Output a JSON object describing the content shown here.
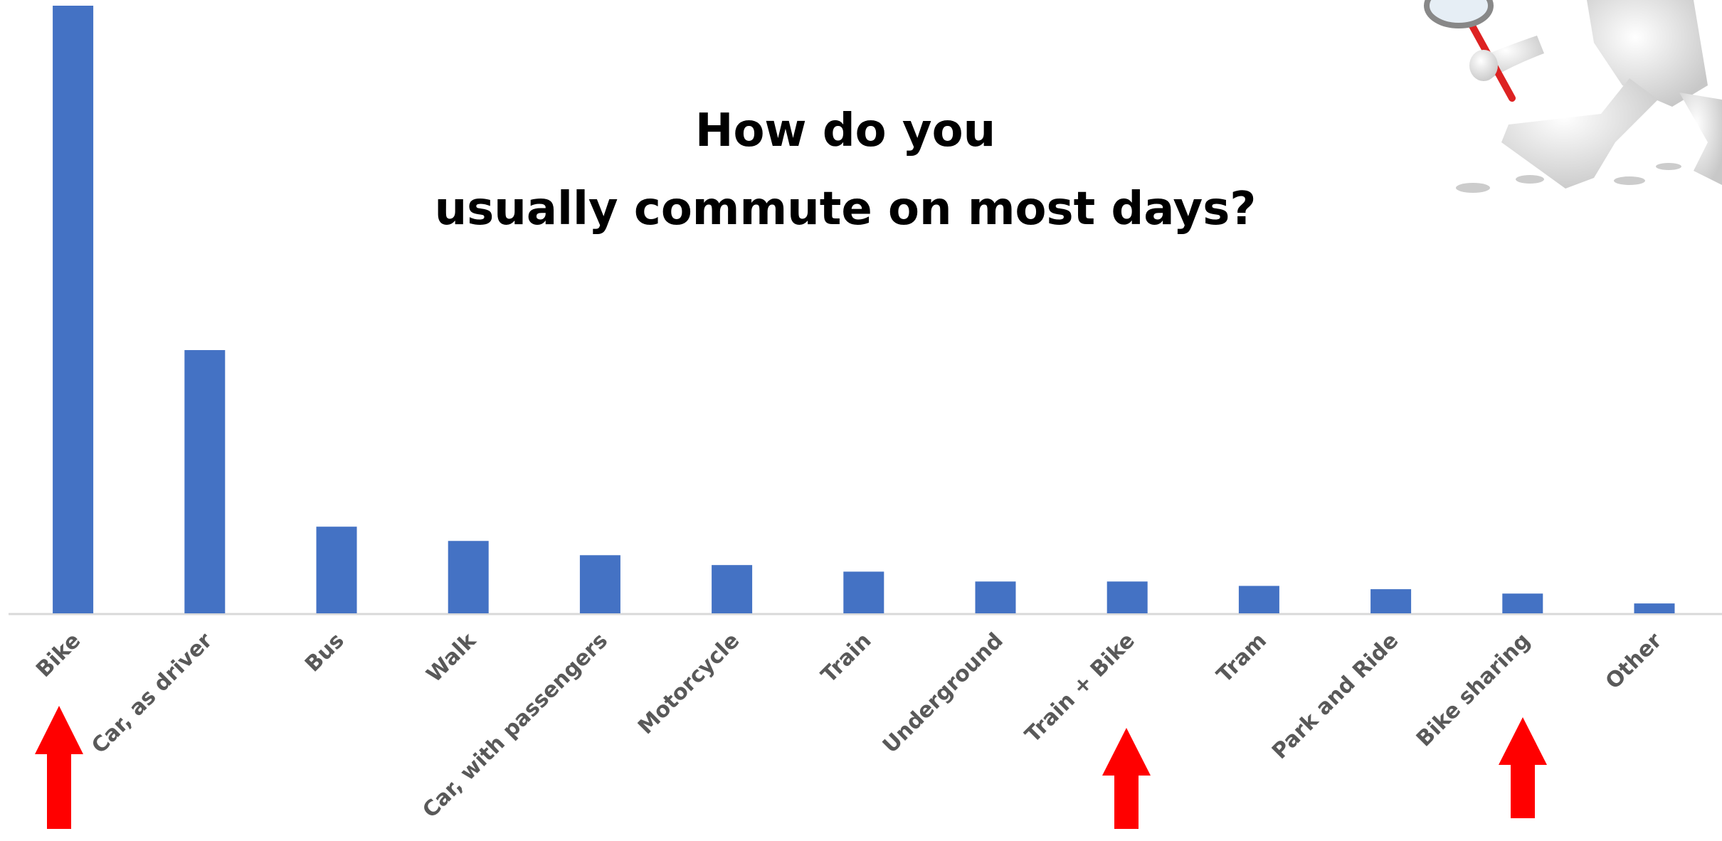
{
  "chart_data": {
    "type": "bar",
    "title": "How do you usually commute on most days?",
    "categories": [
      "Bike",
      "Car, as driver",
      "Bus",
      "Walk",
      "Car, with passengers",
      "Motorcycle",
      "Train",
      "Underground",
      "Train + Bike",
      "Tram",
      "Park and Ride",
      "Bike sharing",
      "Other"
    ],
    "values": [
      554,
      240,
      79,
      66,
      53,
      44,
      38,
      29,
      29,
      25,
      22,
      18,
      9
    ],
    "color": "#4472c4"
  }
}
